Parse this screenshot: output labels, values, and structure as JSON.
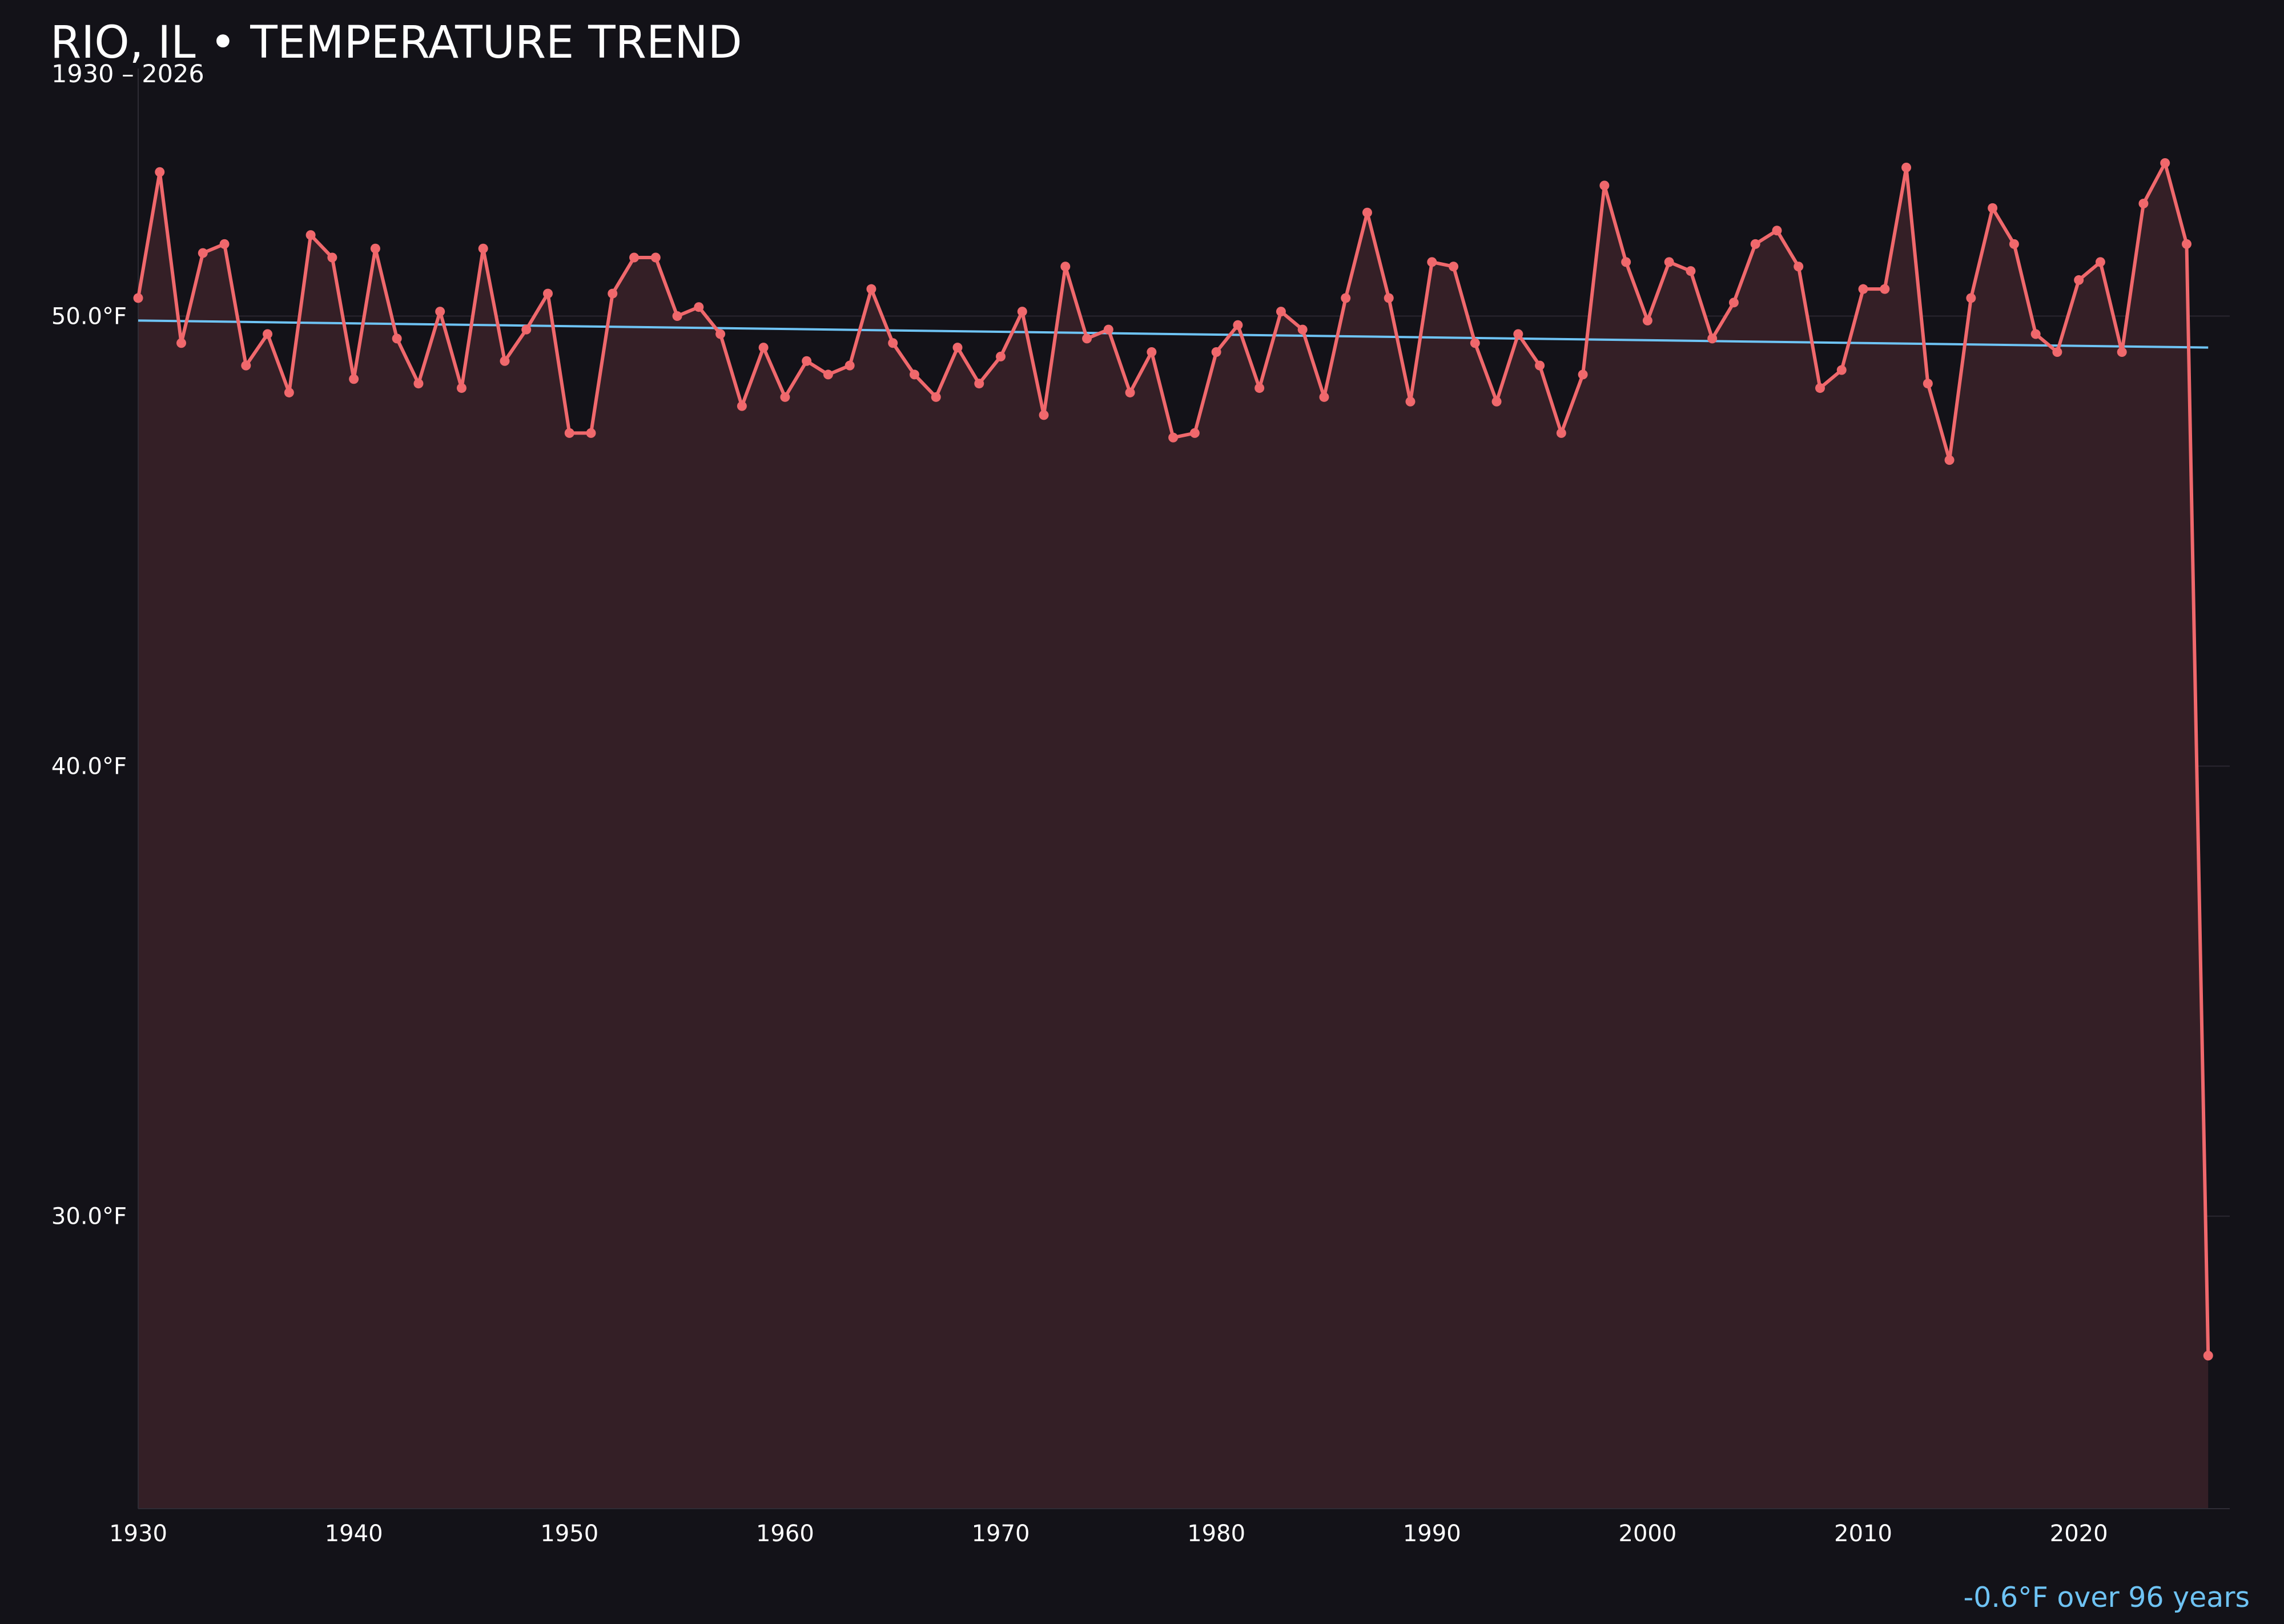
{
  "chart_data": {
    "type": "line",
    "title": "RIO, IL • TEMPERATURE TREND",
    "subtitle": "1930 – 2026",
    "xlabel": "",
    "ylabel": "",
    "xlim": [
      1930,
      2027
    ],
    "ylim": [
      23.5,
      55.5
    ],
    "x_ticks": [
      1930,
      1940,
      1950,
      1960,
      1970,
      1980,
      1990,
      2000,
      2010,
      2020
    ],
    "x_tick_labels": [
      "1930",
      "1940",
      "1950",
      "1960",
      "1970",
      "1980",
      "1990",
      "2000",
      "2010",
      "2020"
    ],
    "y_ticks": [
      30,
      40,
      50
    ],
    "y_tick_labels": [
      "30.0°F",
      "40.0°F",
      "50.0°F"
    ],
    "grid": true,
    "legend": "none",
    "series": [
      {
        "type": "line",
        "color": "#f0686c",
        "markers": true,
        "area_fill": true,
        "x": [
          1930,
          1931,
          1932,
          1933,
          1934,
          1935,
          1936,
          1937,
          1938,
          1939,
          1940,
          1941,
          1942,
          1943,
          1944,
          1945,
          1946,
          1947,
          1948,
          1949,
          1950,
          1951,
          1952,
          1953,
          1954,
          1955,
          1956,
          1957,
          1958,
          1959,
          1960,
          1961,
          1962,
          1963,
          1964,
          1965,
          1966,
          1967,
          1968,
          1969,
          1970,
          1971,
          1972,
          1973,
          1974,
          1975,
          1976,
          1977,
          1978,
          1979,
          1980,
          1981,
          1982,
          1983,
          1984,
          1985,
          1986,
          1987,
          1988,
          1989,
          1990,
          1991,
          1992,
          1993,
          1994,
          1995,
          1996,
          1997,
          1998,
          1999,
          2000,
          2001,
          2002,
          2003,
          2004,
          2005,
          2006,
          2007,
          2008,
          2009,
          2010,
          2011,
          2012,
          2013,
          2014,
          2015,
          2016,
          2017,
          2018,
          2019,
          2020,
          2021,
          2022,
          2023,
          2024,
          2025,
          2026
        ],
        "y": [
          50.4,
          53.2,
          49.4,
          51.4,
          51.6,
          48.9,
          49.6,
          48.3,
          51.8,
          51.3,
          48.6,
          51.5,
          49.5,
          48.5,
          50.1,
          48.4,
          51.5,
          49.0,
          49.7,
          50.5,
          47.4,
          47.4,
          50.5,
          51.3,
          51.3,
          50.0,
          50.2,
          49.6,
          48.0,
          49.3,
          48.2,
          49.0,
          48.7,
          48.9,
          50.6,
          49.4,
          48.7,
          48.2,
          49.3,
          48.5,
          49.1,
          50.1,
          47.8,
          51.1,
          49.5,
          49.7,
          48.3,
          49.2,
          47.3,
          47.4,
          49.2,
          49.8,
          48.4,
          50.1,
          49.7,
          48.2,
          50.4,
          52.3,
          50.4,
          48.1,
          51.2,
          51.1,
          49.4,
          48.1,
          49.6,
          48.9,
          47.4,
          48.7,
          52.9,
          51.2,
          49.9,
          51.2,
          51.0,
          49.5,
          50.3,
          51.6,
          51.9,
          51.1,
          48.4,
          48.8,
          50.6,
          50.6,
          53.3,
          48.5,
          46.8,
          50.4,
          52.4,
          51.6,
          49.6,
          49.2,
          50.8,
          51.2,
          49.2,
          52.5,
          53.4,
          51.6,
          26.9
        ]
      },
      {
        "type": "trend",
        "color": "#6ec3f4",
        "x": [
          1930,
          2026
        ],
        "y": [
          49.9,
          49.3
        ]
      }
    ]
  },
  "annotations": {
    "trend_note": "-0.6°F over 96 years"
  }
}
